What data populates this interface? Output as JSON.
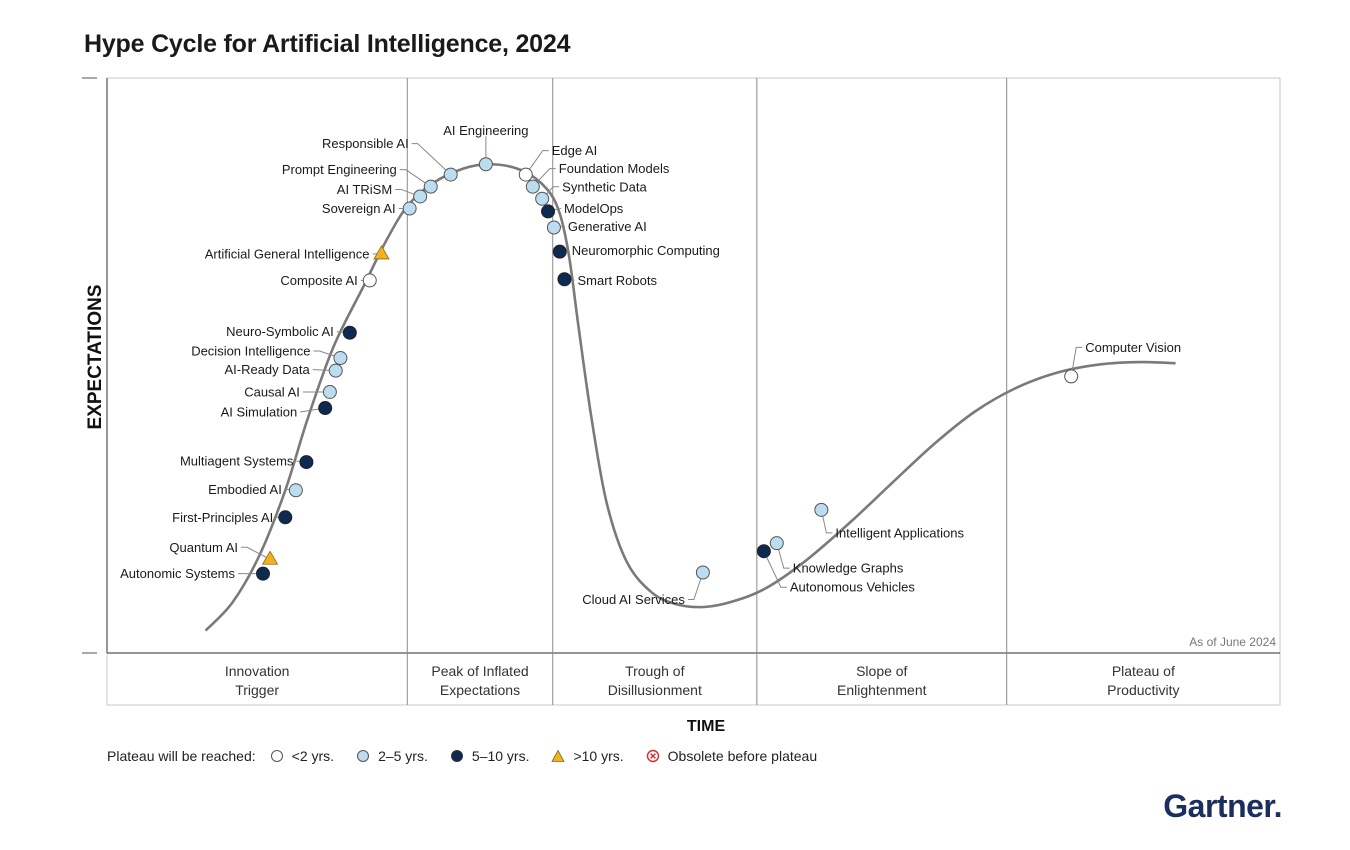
{
  "title": "Hype Cycle for Artificial Intelligence, 2024",
  "brand": "Gartner",
  "brand_dot": ".",
  "colors": {
    "lt2": "#ffffff",
    "y2to5": "#bcdcef",
    "y5to10": "#0e2a52",
    "gt10": "#f2b120",
    "obsolete": "#d9272e",
    "curve": "#7a7a7a",
    "border": "#c9c9c9"
  },
  "legend": {
    "label": "Plateau will be reached:",
    "items": [
      {
        "key": "lt2",
        "label": "<2 yrs."
      },
      {
        "key": "y2to5",
        "label": "2–5 yrs."
      },
      {
        "key": "y5to10",
        "label": "5–10 yrs."
      },
      {
        "key": "gt10",
        "label": ">10 yrs."
      },
      {
        "key": "obsolete",
        "label": "Obsolete before plateau"
      }
    ]
  },
  "chart_data": {
    "type": "scatter",
    "title": "Hype Cycle for Artificial Intelligence, 2024",
    "xlabel": "TIME",
    "ylabel": "EXPECTATIONS",
    "annotation": "As of June 2024",
    "xlim": [
      0,
      100
    ],
    "ylim": [
      0,
      100
    ],
    "phases": [
      {
        "name": "Innovation Trigger",
        "lines": [
          "Innovation",
          "Trigger"
        ],
        "x_start": 0,
        "x_end": 25.6
      },
      {
        "name": "Peak of Inflated Expectations",
        "lines": [
          "Peak of Inflated",
          "Expectations"
        ],
        "x_start": 25.6,
        "x_end": 38
      },
      {
        "name": "Trough of Disillusionment",
        "lines": [
          "Trough of",
          "Disillusionment"
        ],
        "x_start": 38,
        "x_end": 55.4
      },
      {
        "name": "Slope of Enlightenment",
        "lines": [
          "Slope of",
          "Enlightenment"
        ],
        "x_start": 55.4,
        "x_end": 76.7
      },
      {
        "name": "Plateau of Productivity",
        "lines": [
          "Plateau of",
          "Productivity"
        ],
        "x_start": 76.7,
        "x_end": 100
      }
    ],
    "curve": [
      [
        8.4,
        3.9
      ],
      [
        10.7,
        8.8
      ],
      [
        13.0,
        17.0
      ],
      [
        15.2,
        28.3
      ],
      [
        17.1,
        40.7
      ],
      [
        19.3,
        53.2
      ],
      [
        21.9,
        63.9
      ],
      [
        23.8,
        71.7
      ],
      [
        25.6,
        77.7
      ],
      [
        27.7,
        81.6
      ],
      [
        30.3,
        84.2
      ],
      [
        32.8,
        85.0
      ],
      [
        35.4,
        83.9
      ],
      [
        37.5,
        80.7
      ],
      [
        38.6,
        76.4
      ],
      [
        39.4,
        68.9
      ],
      [
        40.2,
        56.7
      ],
      [
        41.3,
        40.9
      ],
      [
        42.6,
        26.1
      ],
      [
        44.3,
        15.9
      ],
      [
        46.4,
        10.6
      ],
      [
        48.5,
        8.5
      ],
      [
        50.9,
        8.0
      ],
      [
        53.4,
        9.0
      ],
      [
        56.2,
        11.3
      ],
      [
        59.6,
        16.1
      ],
      [
        63.4,
        22.8
      ],
      [
        67.2,
        30.1
      ],
      [
        70.6,
        36.5
      ],
      [
        74.0,
        42.0
      ],
      [
        77.4,
        46.0
      ],
      [
        80.9,
        48.7
      ],
      [
        84.7,
        50.2
      ],
      [
        88.1,
        50.6
      ],
      [
        91.1,
        50.4
      ]
    ],
    "points": [
      {
        "name": "Autonomic Systems",
        "x": 13.3,
        "y": 13.8,
        "cat": "y5to10"
      },
      {
        "name": "Quantum AI",
        "x": 13.9,
        "y": 16.3,
        "cat": "gt10"
      },
      {
        "name": "First-Principles AI",
        "x": 15.2,
        "y": 23.6,
        "cat": "y5to10"
      },
      {
        "name": "Embodied AI",
        "x": 16.1,
        "y": 28.3,
        "cat": "y2to5"
      },
      {
        "name": "Multiagent Systems",
        "x": 17.0,
        "y": 33.2,
        "cat": "y5to10"
      },
      {
        "name": "AI Simulation",
        "x": 18.6,
        "y": 42.6,
        "cat": "y5to10"
      },
      {
        "name": "Causal AI",
        "x": 19.0,
        "y": 45.4,
        "cat": "y2to5"
      },
      {
        "name": "AI-Ready Data",
        "x": 19.5,
        "y": 49.1,
        "cat": "y2to5"
      },
      {
        "name": "Decision Intelligence",
        "x": 19.9,
        "y": 51.3,
        "cat": "y2to5"
      },
      {
        "name": "Neuro-Symbolic AI",
        "x": 20.7,
        "y": 55.7,
        "cat": "y5to10"
      },
      {
        "name": "Composite AI",
        "x": 22.4,
        "y": 64.8,
        "cat": "lt2"
      },
      {
        "name": "Artificial General Intelligence",
        "x": 23.4,
        "y": 69.4,
        "cat": "gt10"
      },
      {
        "name": "Sovereign AI",
        "x": 25.8,
        "y": 77.3,
        "cat": "y2to5"
      },
      {
        "name": "AI TRiSM",
        "x": 26.7,
        "y": 79.4,
        "cat": "y2to5"
      },
      {
        "name": "Prompt Engineering",
        "x": 27.6,
        "y": 81.1,
        "cat": "y2to5"
      },
      {
        "name": "Responsible AI",
        "x": 29.3,
        "y": 83.2,
        "cat": "y2to5"
      },
      {
        "name": "AI Engineering",
        "x": 32.3,
        "y": 85.0,
        "cat": "y2to5"
      },
      {
        "name": "Edge AI",
        "x": 35.7,
        "y": 83.2,
        "cat": "lt2"
      },
      {
        "name": "Foundation Models",
        "x": 36.3,
        "y": 81.1,
        "cat": "y2to5"
      },
      {
        "name": "Synthetic Data",
        "x": 37.1,
        "y": 79.0,
        "cat": "y2to5"
      },
      {
        "name": "ModelOps",
        "x": 37.6,
        "y": 76.8,
        "cat": "y5to10"
      },
      {
        "name": "Generative AI",
        "x": 38.1,
        "y": 74.0,
        "cat": "y2to5"
      },
      {
        "name": "Neuromorphic Computing",
        "x": 38.6,
        "y": 69.8,
        "cat": "y5to10"
      },
      {
        "name": "Smart Robots",
        "x": 39.0,
        "y": 65.0,
        "cat": "y5to10"
      },
      {
        "name": "Cloud AI Services",
        "x": 50.8,
        "y": 14.0,
        "cat": "y2to5"
      },
      {
        "name": "Autonomous Vehicles",
        "x": 56.0,
        "y": 17.7,
        "cat": "y5to10"
      },
      {
        "name": "Knowledge Graphs",
        "x": 57.1,
        "y": 19.1,
        "cat": "y2to5"
      },
      {
        "name": "Intelligent Applications",
        "x": 60.9,
        "y": 24.9,
        "cat": "y2to5"
      },
      {
        "name": "Computer Vision",
        "x": 82.2,
        "y": 48.1,
        "cat": "lt2"
      }
    ]
  }
}
